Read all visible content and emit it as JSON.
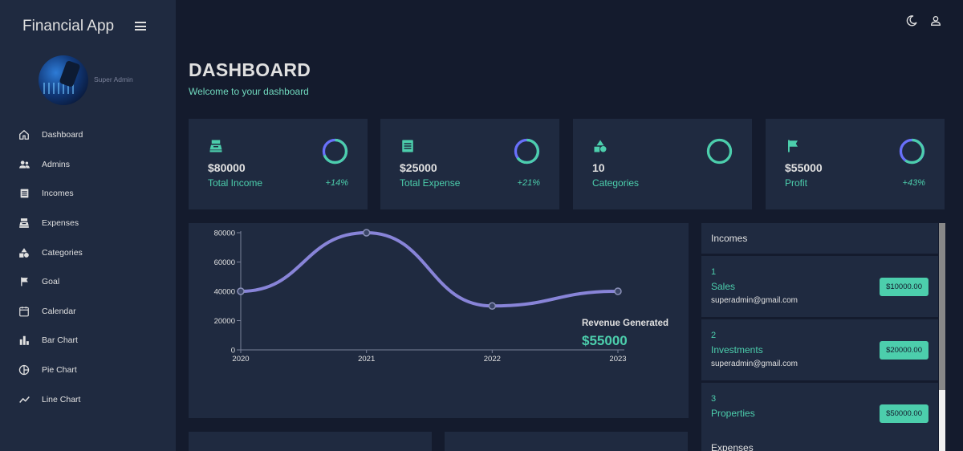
{
  "sidebar": {
    "brand": "Financial App",
    "role": "Super Admin",
    "items": [
      {
        "label": "Dashboard",
        "icon": "home-icon"
      },
      {
        "label": "Admins",
        "icon": "people-icon"
      },
      {
        "label": "Incomes",
        "icon": "receipt-icon"
      },
      {
        "label": "Expenses",
        "icon": "cash-register-icon"
      },
      {
        "label": "Categories",
        "icon": "shapes-icon"
      },
      {
        "label": "Goal",
        "icon": "flag-icon"
      },
      {
        "label": "Calendar",
        "icon": "calendar-icon"
      },
      {
        "label": "Bar Chart",
        "icon": "bar-chart-icon"
      },
      {
        "label": "Pie Chart",
        "icon": "pie-chart-icon"
      },
      {
        "label": "Line Chart",
        "icon": "line-chart-icon"
      }
    ]
  },
  "header": {
    "title": "DASHBOARD",
    "subtitle": "Welcome to your dashboard"
  },
  "stats": [
    {
      "value": "$80000",
      "label": "Total Income",
      "percent": "+14%",
      "icon": "cash-register-icon"
    },
    {
      "value": "$25000",
      "label": "Total Expense",
      "percent": "+21%",
      "icon": "receipt-icon"
    },
    {
      "value": "10",
      "label": "Categories",
      "percent": "",
      "icon": "shapes-icon"
    },
    {
      "value": "$55000",
      "label": "Profit",
      "percent": "+43%",
      "icon": "flag-icon"
    }
  ],
  "revenue": {
    "label": "Revenue Generated",
    "value": "$55000"
  },
  "chart_data": {
    "type": "line",
    "x": [
      "2020",
      "2021",
      "2022",
      "2023"
    ],
    "series": [
      {
        "values": [
          40000,
          80000,
          30000,
          40000
        ]
      }
    ],
    "yticks": [
      0,
      20000,
      40000,
      60000,
      80000
    ],
    "ylim": [
      0,
      80000
    ],
    "title": "",
    "xlabel": "",
    "ylabel": "",
    "grid": false,
    "color": "#8884d8"
  },
  "incomes": {
    "title": "Incomes",
    "entries": [
      {
        "num": "1",
        "name": "Sales",
        "email": "superadmin@gmail.com",
        "amount": "$10000.00"
      },
      {
        "num": "2",
        "name": "Investments",
        "email": "superadmin@gmail.com",
        "amount": "$20000.00"
      },
      {
        "num": "3",
        "name": "Properties",
        "email": "",
        "amount": "$50000.00"
      }
    ]
  },
  "expenses": {
    "title": "Expenses"
  },
  "colors": {
    "background": "#141b2d",
    "panel": "#1f2a40",
    "accent": "#4cceac",
    "line": "#8884d8"
  }
}
